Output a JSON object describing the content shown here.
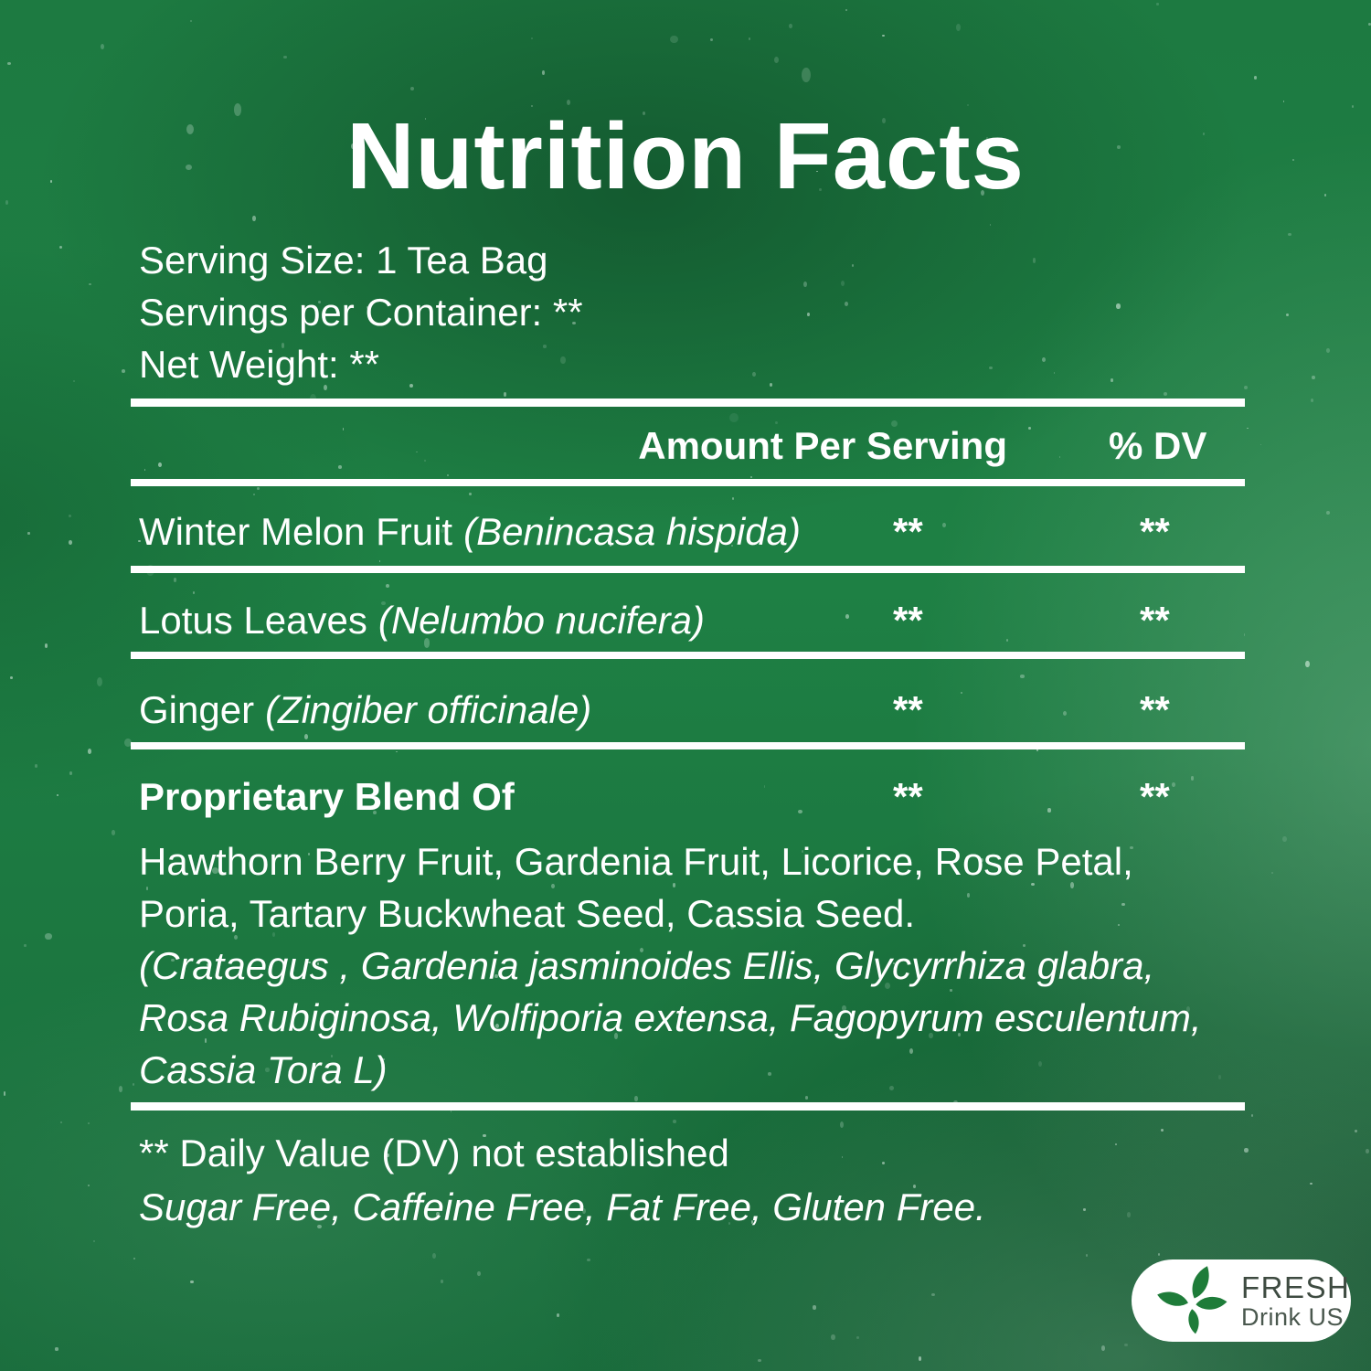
{
  "title": "Nutrition Facts",
  "serving": {
    "size": "Serving Size: 1 Tea Bag",
    "per_container": "Servings per Container: **",
    "net_weight": "Net Weight: **"
  },
  "table": {
    "amount_header": "Amount Per Serving",
    "dv_header": "% DV",
    "rows": [
      {
        "name": "Winter Melon Fruit",
        "latin": "(Benincasa hispida)",
        "amount": "**",
        "dv": "**"
      },
      {
        "name": "Lotus Leaves",
        "latin": "(Nelumbo nucifera)",
        "amount": "**",
        "dv": "**"
      },
      {
        "name": "Ginger",
        "latin": "(Zingiber officinale)",
        "amount": "**",
        "dv": "**"
      }
    ],
    "blend": {
      "label": "Proprietary Blend Of",
      "amount": "**",
      "dv": "**",
      "ingredient_lines": [
        "Hawthorn Berry Fruit, Gardenia Fruit, Licorice, Rose Petal,",
        "Poria, Tartary Buckwheat Seed, Cassia Seed."
      ],
      "latin_lines": [
        "(Crataegus , Gardenia jasminoides Ellis, Glycyrrhiza glabra,",
        "Rosa Rubiginosa, Wolfiporia extensa, Fagopyrum esculentum,",
        "Cassia Tora L)"
      ]
    }
  },
  "footnotes": {
    "dv_note": "** Daily Value (DV) not established",
    "claims": "Sugar Free, Caffeine Free, Fat Free, Gluten Free."
  },
  "logo": {
    "brand_top": "FRESH",
    "brand_bottom": "Drink US",
    "icon": "four-leaves-icon"
  },
  "colors": {
    "background_green": "#1e7f44",
    "text": "#ffffff",
    "rule": "#ffffff",
    "leaf_green": "#1e7c39",
    "logo_text": "#3e4b41",
    "logo_pill": "#ffffff"
  }
}
